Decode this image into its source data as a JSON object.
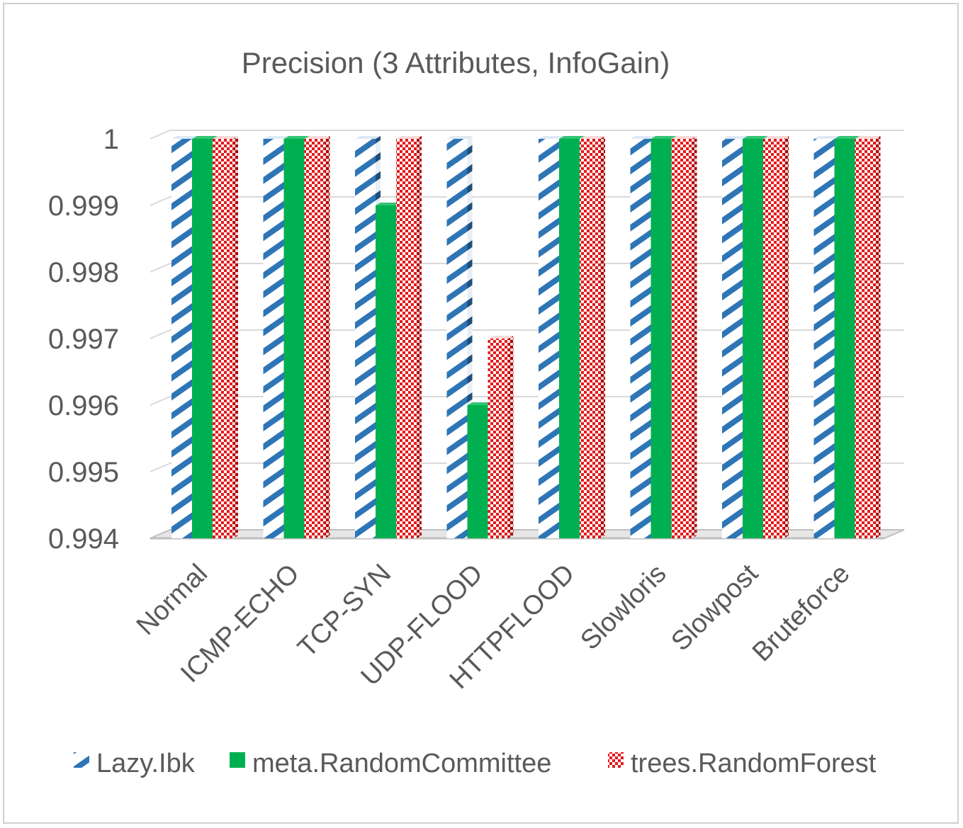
{
  "chart_data": {
    "type": "bar",
    "title": "Precision (3 Attributes, InfoGain)",
    "categories": [
      "Normal",
      "ICMP-ECHO",
      "TCP-SYN",
      "UDP-FLOOD",
      "HTTPFLOOD",
      "Slowloris",
      "Slowpost",
      "Bruteforce"
    ],
    "series": [
      {
        "name": "Lazy.Ibk",
        "values": [
          1,
          1,
          1,
          1,
          1,
          1,
          1,
          1
        ],
        "color": "#2e75b6",
        "pattern": "diagonal-stripes"
      },
      {
        "name": "meta.RandomCommittee",
        "values": [
          1,
          1,
          0.999,
          0.996,
          1,
          1,
          1,
          1
        ],
        "color": "#00b050",
        "pattern": "solid"
      },
      {
        "name": "trees.RandomForest",
        "values": [
          1,
          1,
          1,
          0.997,
          1,
          1,
          1,
          1
        ],
        "color": "#ff0000",
        "pattern": "checker"
      }
    ],
    "yticks": [
      "0.994",
      "0.995",
      "0.996",
      "0.997",
      "0.998",
      "0.999",
      "1"
    ],
    "ylim": [
      0.994,
      1
    ],
    "xlabel": "",
    "ylabel": "",
    "grid": true,
    "legend": "bottom"
  }
}
